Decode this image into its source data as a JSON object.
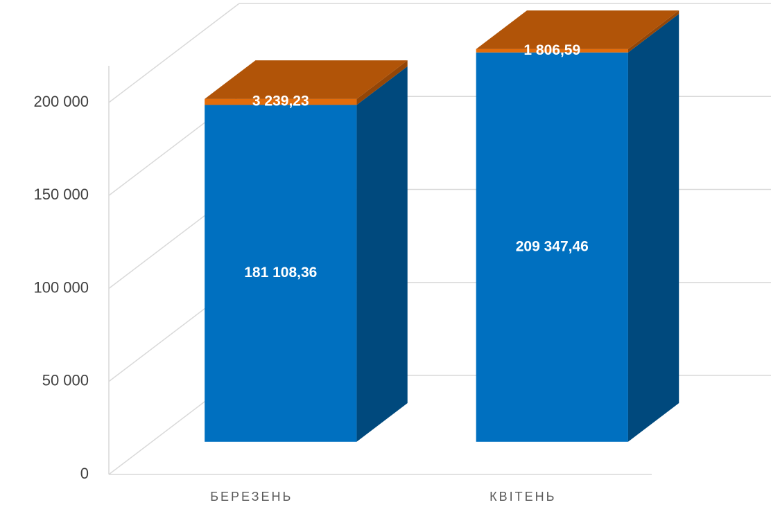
{
  "chart_data": {
    "type": "bar3d_stacked",
    "categories": [
      "БЕРЕЗЕНЬ",
      "КВІТЕНЬ"
    ],
    "series": [
      {
        "color": "#0070c0",
        "values": [
          181108.36,
          209347.46
        ],
        "value_labels": [
          "181 108,36",
          "209 347,46"
        ]
      },
      {
        "color": "#e36c0a",
        "values": [
          3239.23,
          1806.59
        ],
        "value_labels": [
          "3 239,23",
          "1 806,59"
        ]
      }
    ],
    "ylim": [
      0,
      200000
    ],
    "yticks": [
      0,
      {
        "value": 50000,
        "label": "50 000"
      },
      {
        "value": 100000,
        "label": "100 000"
      },
      {
        "value": 150000,
        "label": "150 000"
      },
      {
        "value": 200000,
        "label": "200 000"
      }
    ],
    "grid": true
  }
}
